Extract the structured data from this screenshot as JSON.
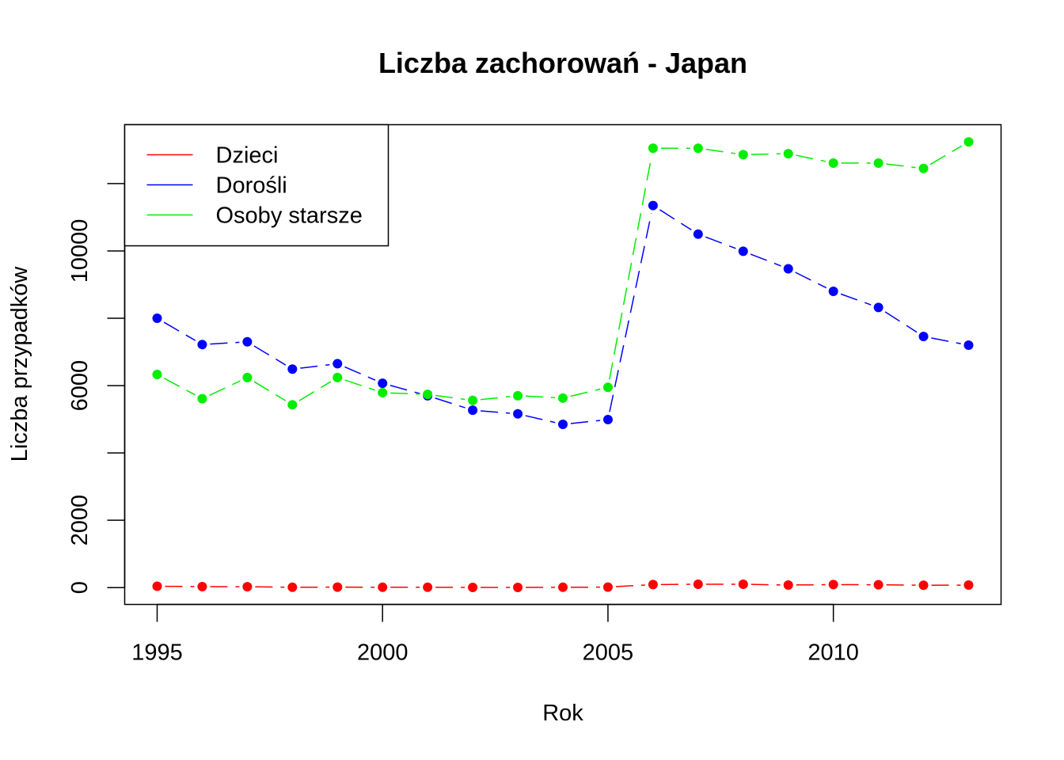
{
  "chart_data": {
    "type": "line",
    "title": "Liczba zachorowań -  Japan",
    "xlabel": "Rok",
    "ylabel": "Liczba przypadków",
    "x": [
      1995,
      1996,
      1997,
      1998,
      1999,
      2000,
      2001,
      2002,
      2003,
      2004,
      2005,
      2006,
      2007,
      2008,
      2009,
      2010,
      2011,
      2012,
      2013
    ],
    "xlim": [
      1994.28,
      2013.72
    ],
    "ylim": [
      -500,
      13750
    ],
    "xticks": [
      1995,
      2000,
      2005,
      2010
    ],
    "yticks": [
      0,
      2000,
      4000,
      6000,
      8000,
      10000,
      12000
    ],
    "ytick_labels_shown": [
      0,
      2000,
      6000,
      10000
    ],
    "legend_position": "top-left",
    "grid": false,
    "series": [
      {
        "name": "Dzieci",
        "color": "#ff0000",
        "values": [
          40,
          30,
          25,
          10,
          15,
          10,
          10,
          5,
          5,
          10,
          15,
          90,
          100,
          100,
          75,
          90,
          85,
          70,
          75
        ]
      },
      {
        "name": "Dorośli",
        "color": "#0000ff",
        "values": [
          8000,
          7220,
          7300,
          6490,
          6650,
          6070,
          5700,
          5270,
          5160,
          4850,
          4990,
          11350,
          10500,
          9990,
          9470,
          8800,
          8320,
          7460,
          7200
        ]
      },
      {
        "name": "Osoby starsze",
        "color": "#00ee00",
        "values": [
          6330,
          5610,
          6240,
          5430,
          6240,
          5790,
          5740,
          5560,
          5700,
          5630,
          5950,
          13050,
          13050,
          12860,
          12890,
          12610,
          12610,
          12450,
          13240
        ]
      }
    ]
  }
}
